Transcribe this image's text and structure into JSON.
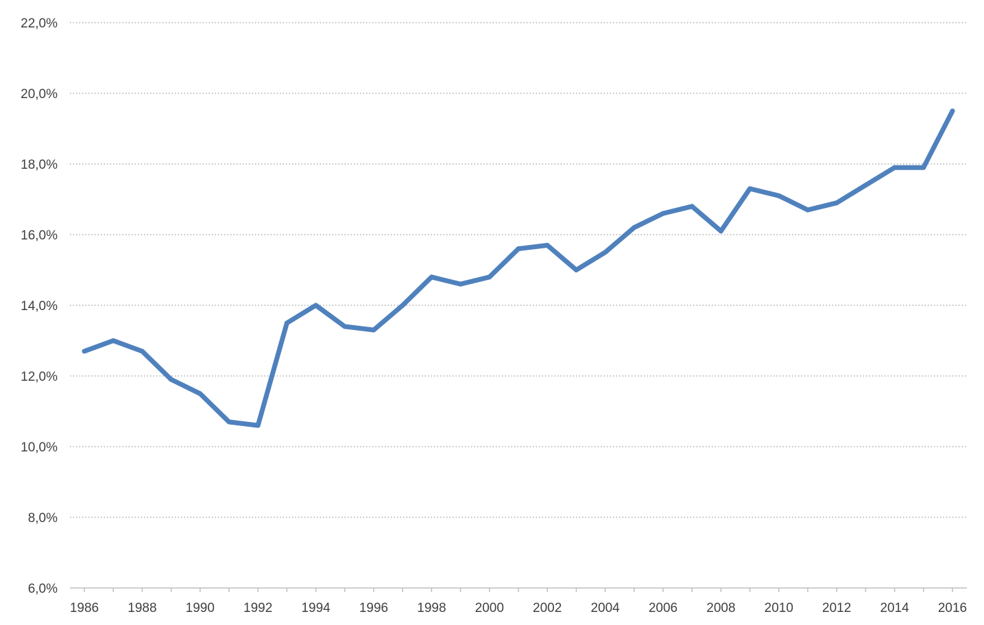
{
  "chart_data": {
    "type": "line",
    "title": "",
    "xlabel": "",
    "ylabel": "",
    "x": [
      1986,
      1987,
      1988,
      1989,
      1990,
      1991,
      1992,
      1993,
      1994,
      1995,
      1996,
      1997,
      1998,
      1999,
      2000,
      2001,
      2002,
      2003,
      2004,
      2005,
      2006,
      2007,
      2008,
      2009,
      2010,
      2011,
      2012,
      2013,
      2014,
      2015,
      2016
    ],
    "series": [
      {
        "color": "#4f81bd",
        "values": [
          12.7,
          13.0,
          12.7,
          11.9,
          11.5,
          10.7,
          10.6,
          13.5,
          14.0,
          13.4,
          13.3,
          14.0,
          14.8,
          14.6,
          14.8,
          15.6,
          15.7,
          15.0,
          15.5,
          16.2,
          16.6,
          16.8,
          16.1,
          17.3,
          17.1,
          16.7,
          16.9,
          17.4,
          17.9,
          17.9,
          19.5
        ]
      }
    ],
    "ylim": [
      6,
      22
    ],
    "y_ticks": [
      6,
      8,
      10,
      12,
      14,
      16,
      18,
      20,
      22
    ],
    "y_tick_labels": [
      "6,0%",
      "8,0%",
      "10,0%",
      "12,0%",
      "14,0%",
      "16,0%",
      "18,0%",
      "20,0%",
      "22,0%"
    ],
    "x_tick_labels": [
      "1986",
      "1988",
      "1990",
      "1992",
      "1994",
      "1996",
      "1998",
      "2000",
      "2002",
      "2004",
      "2006",
      "2008",
      "2010",
      "2012",
      "2014",
      "2016"
    ],
    "grid": true,
    "legend": "none"
  }
}
